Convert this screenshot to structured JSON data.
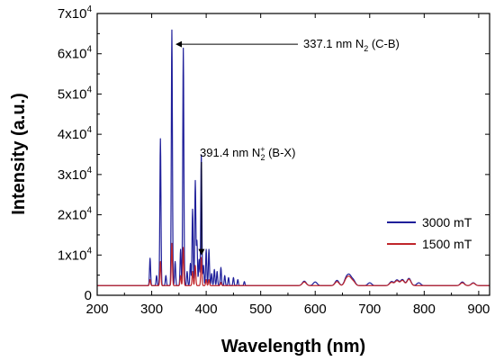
{
  "chart_data": {
    "type": "line",
    "title": "",
    "xlabel": "Wavelength (nm)",
    "ylabel": "Intensity (a.u.)",
    "xlim": [
      200,
      920
    ],
    "ylim": [
      0,
      70000
    ],
    "x_ticks": [
      200,
      300,
      400,
      500,
      600,
      700,
      800,
      900
    ],
    "y_ticks": [
      {
        "value": 0,
        "mantissa": "0",
        "exp": ""
      },
      {
        "value": 10000,
        "mantissa": "1x10",
        "exp": "4"
      },
      {
        "value": 20000,
        "mantissa": "2x10",
        "exp": "4"
      },
      {
        "value": 30000,
        "mantissa": "3x10",
        "exp": "4"
      },
      {
        "value": 40000,
        "mantissa": "4x10",
        "exp": "4"
      },
      {
        "value": 50000,
        "mantissa": "5x10",
        "exp": "4"
      },
      {
        "value": 60000,
        "mantissa": "6x10",
        "exp": "4"
      },
      {
        "value": 70000,
        "mantissa": "7x10",
        "exp": "4"
      }
    ],
    "legend_position": "right",
    "baseline": 2400,
    "series": [
      {
        "name": "3000 mT",
        "color": "#1f1f9a",
        "peaks": [
          [
            297,
            6800
          ],
          [
            309,
            2500
          ],
          [
            316,
            36500
          ],
          [
            326,
            2500
          ],
          [
            337,
            63500
          ],
          [
            343,
            6000
          ],
          [
            353,
            9000
          ],
          [
            358,
            59000
          ],
          [
            365,
            3500
          ],
          [
            371,
            5500
          ],
          [
            375,
            19000
          ],
          [
            380,
            26000
          ],
          [
            383,
            11000
          ],
          [
            387,
            6500
          ],
          [
            391,
            32500
          ],
          [
            395,
            5000
          ],
          [
            400,
            9000
          ],
          [
            405,
            9000
          ],
          [
            410,
            3000
          ],
          [
            415,
            4000
          ],
          [
            420,
            3500
          ],
          [
            427,
            4500
          ],
          [
            434,
            2500
          ],
          [
            441,
            2000
          ],
          [
            450,
            2000
          ],
          [
            458,
            1500
          ],
          [
            470,
            1000
          ],
          [
            580,
            1100
          ],
          [
            600,
            900
          ],
          [
            640,
            1300
          ],
          [
            657,
            1800
          ],
          [
            663,
            2200
          ],
          [
            670,
            1300
          ],
          [
            700,
            700
          ],
          [
            740,
            1000
          ],
          [
            750,
            1400
          ],
          [
            760,
            1500
          ],
          [
            772,
            1800
          ],
          [
            790,
            700
          ],
          [
            870,
            900
          ],
          [
            890,
            700
          ]
        ]
      },
      {
        "name": "1500 mT",
        "color": "#c0262b",
        "peaks": [
          [
            297,
            1500
          ],
          [
            316,
            6000
          ],
          [
            337,
            10500
          ],
          [
            353,
            2500
          ],
          [
            358,
            9500
          ],
          [
            375,
            3500
          ],
          [
            380,
            5000
          ],
          [
            391,
            7000
          ],
          [
            400,
            1500
          ],
          [
            405,
            1500
          ],
          [
            427,
            800
          ],
          [
            580,
            900
          ],
          [
            640,
            1000
          ],
          [
            657,
            1500
          ],
          [
            663,
            1800
          ],
          [
            670,
            1000
          ],
          [
            740,
            800
          ],
          [
            750,
            1200
          ],
          [
            760,
            1300
          ],
          [
            772,
            1600
          ],
          [
            870,
            700
          ],
          [
            890,
            600
          ]
        ]
      }
    ],
    "annotations": [
      {
        "text": "337.1 nm N",
        "sub": "2",
        "sup": "",
        "tail": " (C-B)",
        "x": 337.1,
        "y": 63500
      },
      {
        "text": "391.4 nm N",
        "sub": "2",
        "sup": "+",
        "tail": " (B-X)",
        "x": 391.4,
        "y": 32500
      }
    ]
  }
}
